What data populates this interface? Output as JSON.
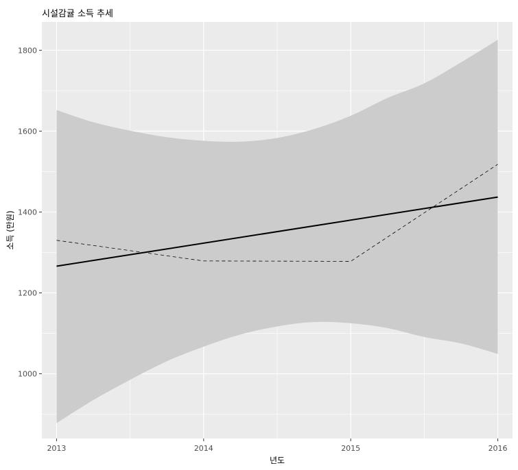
{
  "chart_data": {
    "type": "line",
    "title": "시설감귤 소득 추세",
    "xlabel": "년도",
    "ylabel": "소득 (만원)",
    "xlim": [
      2012.9,
      2016.1
    ],
    "ylim": [
      840,
      1870
    ],
    "x_ticks": [
      2013,
      2014,
      2015,
      2016
    ],
    "x_tick_labels": [
      "2013",
      "2014",
      "2015",
      "2016"
    ],
    "y_ticks": [
      1000,
      1200,
      1400,
      1600,
      1800
    ],
    "y_tick_labels": [
      "1000",
      "1200",
      "1400",
      "1600",
      "1800"
    ],
    "grid": true,
    "legend": "none",
    "series": [
      {
        "style": "dashed",
        "color": "#000000",
        "x": [
          2013,
          2014,
          2015,
          2016
        ],
        "y": [
          1330,
          1279,
          1278,
          1518
        ]
      },
      {
        "style": "solid",
        "color": "#000000",
        "x": [
          2013,
          2016
        ],
        "y": [
          1266,
          1437
        ]
      }
    ],
    "confidence_band": {
      "color": "#cccccc",
      "x": [
        2013,
        2013.25,
        2013.5,
        2013.75,
        2014,
        2014.25,
        2014.5,
        2014.75,
        2015,
        2015.25,
        2015.5,
        2015.75,
        2016
      ],
      "upper": [
        1652,
        1622,
        1601,
        1585,
        1576,
        1574,
        1583,
        1605,
        1638,
        1682,
        1718,
        1770,
        1826
      ],
      "lower": [
        878,
        935,
        985,
        1031,
        1067,
        1097,
        1117,
        1128,
        1125,
        1113,
        1091,
        1075,
        1049
      ]
    },
    "colors": {
      "panel": "#ebebeb",
      "grid_major": "#ffffff",
      "tick_text": "#4d4d4d"
    }
  }
}
